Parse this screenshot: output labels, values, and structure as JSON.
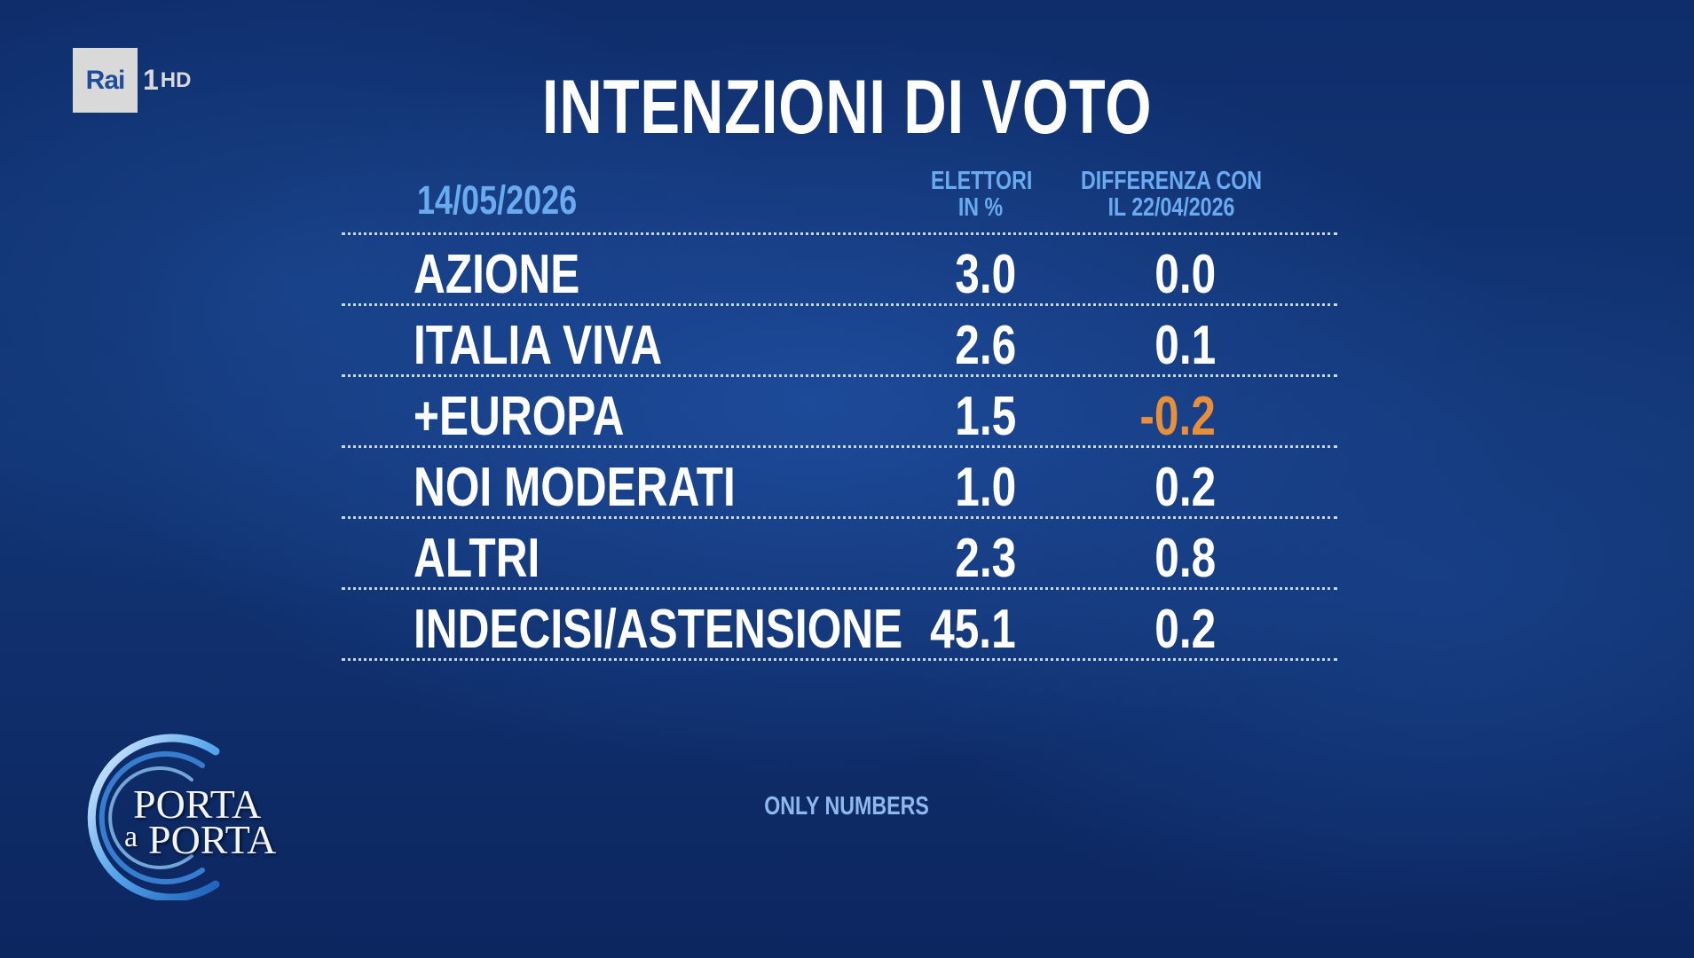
{
  "broadcaster": {
    "logo_text": "Rai",
    "channel_number": "1",
    "quality": "HD"
  },
  "title": "INTENZIONI DI VOTO",
  "table": {
    "date": "14/05/2026",
    "columns": {
      "electors_line1": "ELETTORI",
      "electors_line2": "IN %",
      "diff_line1": "DIFFERENZA CON",
      "diff_line2": "IL 22/04/2026"
    },
    "rows": [
      {
        "party": "AZIONE",
        "value": "3.0",
        "diff": "0.0"
      },
      {
        "party": "ITALIA VIVA",
        "value": "2.6",
        "diff": "0.1"
      },
      {
        "party": "+EUROPA",
        "value": "1.5",
        "diff": "-0.2"
      },
      {
        "party": "NOI MODERATI",
        "value": "1.0",
        "diff": "0.2"
      },
      {
        "party": "ALTRI",
        "value": "2.3",
        "diff": "0.8"
      },
      {
        "party": "INDECISI/ASTENSIONE",
        "value": "45.1",
        "diff": "0.2"
      }
    ],
    "negative_color": "#e88f3a",
    "header_color": "#6aaaf0"
  },
  "footer_note": "ONLY NUMBERS",
  "show_logo": {
    "line1": "PORTA",
    "line2_small": "a",
    "line2": "PORTA"
  }
}
